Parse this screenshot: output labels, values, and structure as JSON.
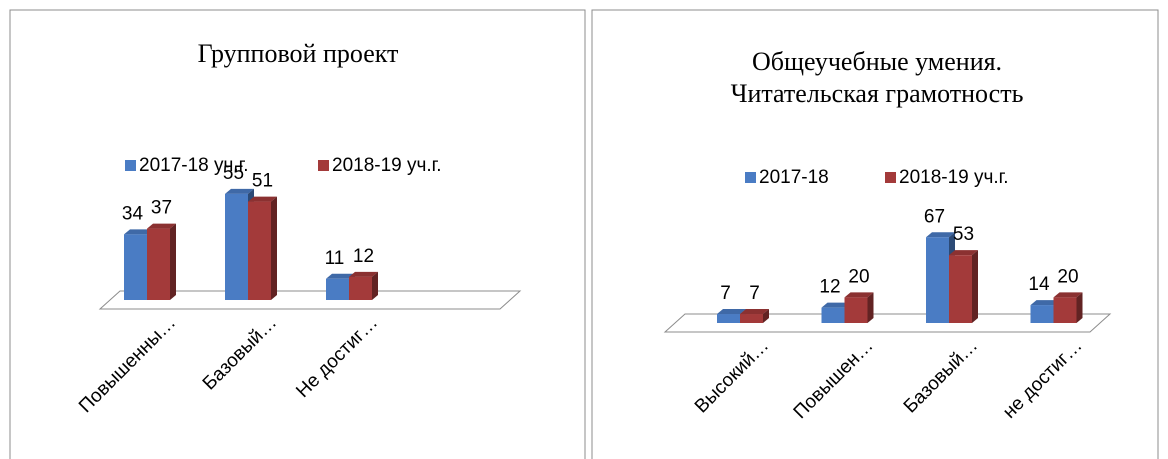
{
  "chart_data": [
    {
      "type": "bar3d",
      "title": [
        "Групповой проект"
      ],
      "categories": [
        "Повышенны…",
        "Базовый…",
        "Не достиг…"
      ],
      "series": [
        {
          "name": "2017-18 уч.г.",
          "color": "#4a7cc4",
          "values": [
            34,
            55,
            11
          ]
        },
        {
          "name": "2018-19 уч.г.",
          "color": "#a33a3a",
          "values": [
            37,
            51,
            12
          ]
        }
      ]
    },
    {
      "type": "bar3d",
      "title": [
        "Общеучебные умения.",
        "Читательская грамотность"
      ],
      "categories": [
        "Высокий…",
        "Повышен…",
        "Базовый…",
        "не достиг…"
      ],
      "series": [
        {
          "name": "2017-18",
          "color": "#4a7cc4",
          "values": [
            7,
            12,
            67,
            14
          ]
        },
        {
          "name": "2018-19 уч.г.",
          "color": "#a33a3a",
          "values": [
            7,
            20,
            53,
            20
          ]
        }
      ]
    }
  ]
}
